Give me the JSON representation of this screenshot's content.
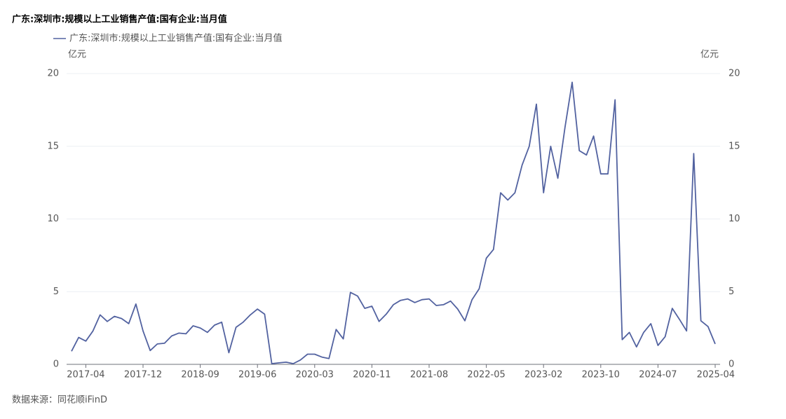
{
  "chart_data": {
    "type": "line",
    "title": "广东:深圳市:规模以上工业销售产值:国有企业:当月值",
    "y_unit": "亿元",
    "source": "数据来源：同花顺iFinD",
    "x": [
      null,
      null,
      "2017-04",
      null,
      null,
      null,
      null,
      null,
      null,
      null,
      "2017-12",
      null,
      null,
      null,
      null,
      null,
      null,
      null,
      "2018-09",
      null,
      null,
      null,
      null,
      null,
      null,
      null,
      "2019-06",
      null,
      null,
      null,
      null,
      null,
      null,
      null,
      "2020-03",
      null,
      null,
      null,
      null,
      null,
      null,
      null,
      "2020-11",
      null,
      null,
      null,
      null,
      null,
      null,
      null,
      "2021-08",
      null,
      null,
      null,
      null,
      null,
      null,
      null,
      "2022-05",
      null,
      null,
      null,
      null,
      null,
      null,
      null,
      "2023-02",
      null,
      null,
      null,
      null,
      null,
      null,
      null,
      "2023-10",
      null,
      null,
      null,
      null,
      null,
      null,
      null,
      "2024-07",
      null,
      null,
      null,
      null,
      null,
      null,
      null,
      "2025-04"
    ],
    "series": [
      {
        "name": "广东:深圳市:规模以上工业销售产值:国有企业:当月值",
        "color": "#5262a0",
        "values": [
          0.9,
          1.85,
          1.6,
          2.3,
          3.4,
          2.95,
          3.3,
          3.15,
          2.8,
          4.15,
          2.3,
          0.95,
          1.4,
          1.45,
          1.95,
          2.15,
          2.1,
          2.65,
          2.5,
          2.2,
          2.7,
          2.9,
          0.8,
          2.55,
          2.9,
          3.4,
          3.8,
          3.45,
          0.05,
          0.1,
          0.15,
          0.05,
          0.3,
          0.7,
          0.7,
          0.5,
          0.4,
          2.4,
          1.75,
          4.95,
          4.7,
          3.85,
          4.0,
          2.95,
          3.45,
          4.1,
          4.4,
          4.5,
          4.25,
          4.45,
          4.5,
          4.05,
          4.1,
          4.35,
          3.8,
          3.0,
          4.45,
          5.2,
          7.3,
          7.9,
          11.8,
          11.3,
          11.8,
          13.7,
          15.0,
          17.9,
          11.8,
          15.0,
          12.8,
          16.3,
          19.4,
          14.7,
          14.4,
          15.7,
          13.1,
          13.1,
          18.2,
          1.7,
          2.2,
          1.2,
          2.2,
          2.8,
          1.3,
          1.9,
          3.85,
          3.1,
          2.3,
          14.5,
          3.0,
          2.6,
          1.4
        ]
      }
    ],
    "ylim": [
      0,
      20
    ],
    "yticks": [
      0,
      5,
      10,
      15,
      20
    ],
    "y2lim": [
      0,
      20
    ],
    "y2ticks": [
      0,
      5,
      10,
      15,
      20
    ],
    "grid": true
  }
}
